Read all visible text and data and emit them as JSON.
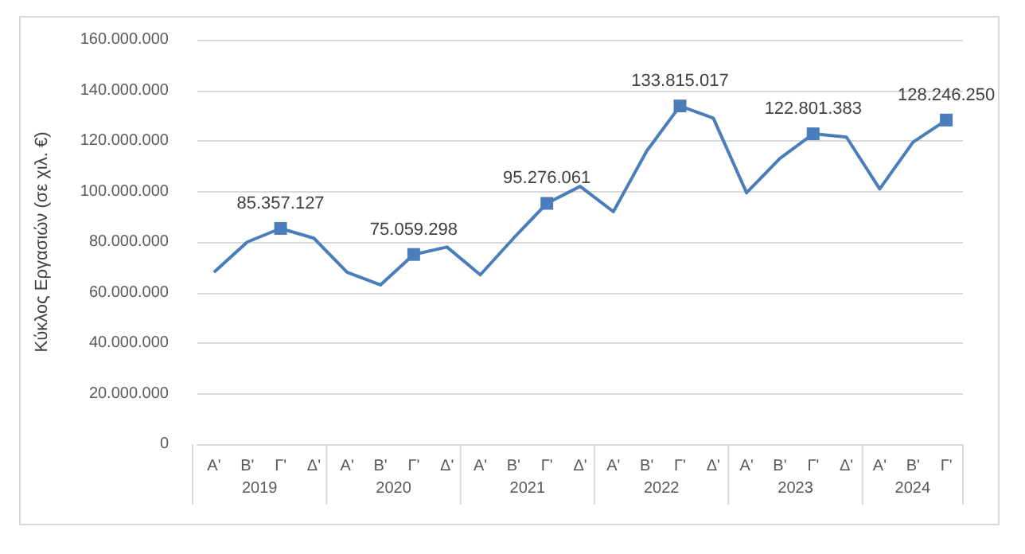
{
  "chart_data": {
    "type": "line",
    "ylabel": "Κύκλος Εργασιών (σε χιλ. €)",
    "categories": [
      "Α'",
      "Β'",
      "Γ'",
      "Δ'",
      "Α'",
      "Β'",
      "Γ'",
      "Δ'",
      "Α'",
      "Β'",
      "Γ'",
      "Δ'",
      "Α'",
      "Β'",
      "Γ'",
      "Δ'",
      "Α'",
      "Β'",
      "Γ'",
      "Δ'",
      "Α'",
      "Β'",
      "Γ'"
    ],
    "annotations": [
      "2019",
      "2020",
      "2021",
      "2022",
      "2023",
      "2024"
    ],
    "series": [
      {
        "color": "#4a7ebb",
        "values": [
          68000000,
          80000000,
          85357127,
          81500000,
          68000000,
          63000000,
          75059298,
          78000000,
          67000000,
          81500000,
          95276061,
          102000000,
          92000000,
          116000000,
          133815017,
          129000000,
          99500000,
          113000000,
          122801383,
          121500000,
          101000000,
          119500000,
          128246250
        ],
        "value_labels": [
          null,
          null,
          "85.357.127",
          null,
          null,
          null,
          "75.059.298",
          null,
          null,
          null,
          "95.276.061",
          null,
          null,
          null,
          "133.815.017",
          null,
          null,
          null,
          "122.801.383",
          null,
          null,
          null,
          "128.246.250"
        ]
      }
    ],
    "ylim": [
      0,
      160000000
    ],
    "yticks": [
      {
        "value": 0,
        "label": "0"
      },
      {
        "value": 20000000,
        "label": "20.000.000"
      },
      {
        "value": 40000000,
        "label": "40.000.000"
      },
      {
        "value": 60000000,
        "label": "60.000.000"
      },
      {
        "value": 80000000,
        "label": "80.000.000"
      },
      {
        "value": 100000000,
        "label": "100.000.000"
      },
      {
        "value": 120000000,
        "label": "120.000.000"
      },
      {
        "value": 140000000,
        "label": "140.000.000"
      },
      {
        "value": 160000000,
        "label": "160.000.000"
      }
    ],
    "grid": "y",
    "line_style": "solid"
  }
}
